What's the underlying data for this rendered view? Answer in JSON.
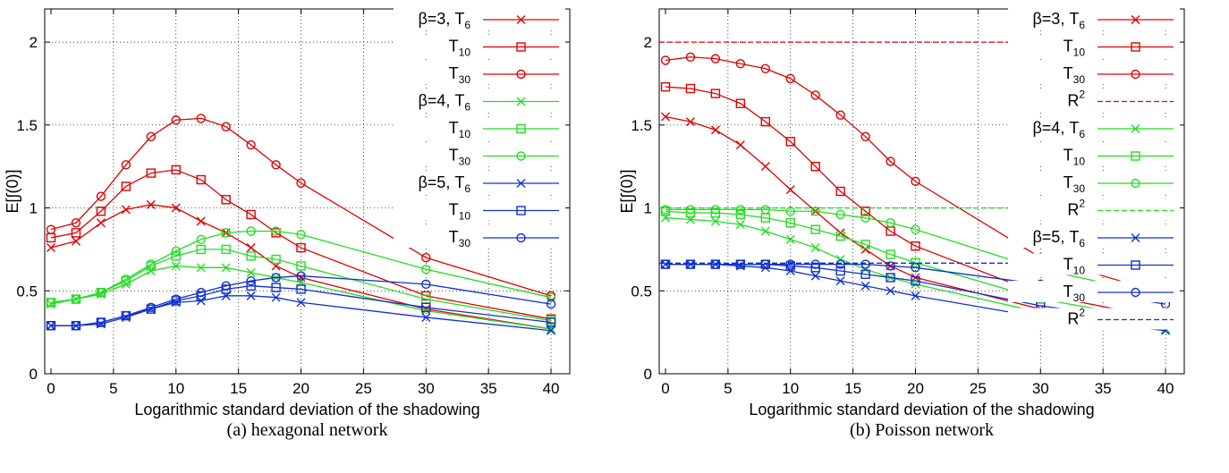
{
  "captions": {
    "a": "(a)  hexagonal network",
    "b": "(b)  Poisson network"
  },
  "chart_data": [
    {
      "type": "line",
      "ylabel": "E[∫(0)]",
      "xlabel": "Logarithmic standard deviation of the shadowing",
      "xlim": [
        -0.5,
        41.5
      ],
      "ylim": [
        0,
        2.2
      ],
      "xticks": [
        0,
        5,
        10,
        15,
        20,
        25,
        30,
        35,
        40
      ],
      "yticks": [
        0,
        0.5,
        1,
        1.5,
        2
      ],
      "ytick_labels": [
        "0",
        "0.5",
        "1",
        "1.5",
        "2"
      ],
      "grid": true,
      "legend": "top-right",
      "series": [
        {
          "name": "β=3, T6",
          "label_main": "β=3, T",
          "label_sub": "6",
          "color": "#e00000",
          "marker": "x",
          "dash": false,
          "x": [
            0,
            2,
            4,
            6,
            8,
            10,
            12,
            14,
            16,
            18,
            20,
            30,
            40
          ],
          "y": [
            0.76,
            0.8,
            0.91,
            0.99,
            1.02,
            1.0,
            0.92,
            0.85,
            0.76,
            0.65,
            0.58,
            0.39,
            0.27
          ]
        },
        {
          "name": "T10",
          "label_main": "T",
          "label_sub": "10",
          "color": "#e00000",
          "marker": "square",
          "dash": false,
          "x": [
            0,
            2,
            4,
            6,
            8,
            10,
            12,
            14,
            16,
            18,
            20,
            30,
            40
          ],
          "y": [
            0.82,
            0.85,
            0.98,
            1.13,
            1.21,
            1.23,
            1.17,
            1.05,
            0.96,
            0.85,
            0.76,
            0.47,
            0.33
          ]
        },
        {
          "name": "T30",
          "label_main": "T",
          "label_sub": "30",
          "color": "#e00000",
          "marker": "circle",
          "dash": false,
          "x": [
            0,
            2,
            4,
            6,
            8,
            10,
            12,
            14,
            16,
            18,
            20,
            30,
            40
          ],
          "y": [
            0.87,
            0.91,
            1.07,
            1.26,
            1.43,
            1.53,
            1.54,
            1.49,
            1.38,
            1.26,
            1.15,
            0.7,
            0.47
          ]
        },
        {
          "name": "β=4, T6",
          "label_main": "β=4, T",
          "label_sub": "6",
          "color": "#22dd22",
          "marker": "x",
          "dash": false,
          "x": [
            0,
            2,
            4,
            6,
            8,
            10,
            12,
            14,
            16,
            18,
            20,
            30,
            40
          ],
          "y": [
            0.42,
            0.45,
            0.48,
            0.54,
            0.62,
            0.65,
            0.64,
            0.64,
            0.61,
            0.58,
            0.55,
            0.38,
            0.27
          ]
        },
        {
          "name": "T10",
          "label_main": "T",
          "label_sub": "10",
          "color": "#22dd22",
          "marker": "square",
          "dash": false,
          "x": [
            0,
            2,
            4,
            6,
            8,
            10,
            12,
            14,
            16,
            18,
            20,
            30,
            40
          ],
          "y": [
            0.43,
            0.45,
            0.49,
            0.56,
            0.65,
            0.71,
            0.75,
            0.75,
            0.71,
            0.69,
            0.65,
            0.45,
            0.32
          ]
        },
        {
          "name": "T30",
          "label_main": "T",
          "label_sub": "30",
          "color": "#22dd22",
          "marker": "circle",
          "dash": false,
          "x": [
            0,
            2,
            4,
            6,
            8,
            10,
            12,
            14,
            16,
            18,
            20,
            30,
            40
          ],
          "y": [
            0.43,
            0.45,
            0.49,
            0.57,
            0.66,
            0.74,
            0.81,
            0.85,
            0.86,
            0.86,
            0.84,
            0.63,
            0.46
          ]
        },
        {
          "name": "β=5, T6",
          "label_main": "β=5, T",
          "label_sub": "6",
          "color": "#1030d0",
          "marker": "x",
          "dash": false,
          "x": [
            0,
            2,
            4,
            6,
            8,
            10,
            12,
            14,
            16,
            18,
            20,
            30,
            40
          ],
          "y": [
            0.29,
            0.29,
            0.3,
            0.34,
            0.39,
            0.43,
            0.44,
            0.47,
            0.47,
            0.46,
            0.43,
            0.34,
            0.26
          ]
        },
        {
          "name": "T10",
          "label_main": "T",
          "label_sub": "10",
          "color": "#1030d0",
          "marker": "square",
          "dash": false,
          "x": [
            0,
            2,
            4,
            6,
            8,
            10,
            12,
            14,
            16,
            18,
            20,
            30,
            40
          ],
          "y": [
            0.29,
            0.29,
            0.31,
            0.35,
            0.39,
            0.44,
            0.47,
            0.51,
            0.53,
            0.52,
            0.51,
            0.4,
            0.31
          ]
        },
        {
          "name": "T30",
          "label_main": "T",
          "label_sub": "30",
          "color": "#1030d0",
          "marker": "circle",
          "dash": false,
          "x": [
            0,
            2,
            4,
            6,
            8,
            10,
            12,
            14,
            16,
            18,
            20,
            30,
            40
          ],
          "y": [
            0.29,
            0.29,
            0.31,
            0.35,
            0.4,
            0.45,
            0.49,
            0.53,
            0.56,
            0.58,
            0.59,
            0.54,
            0.42
          ]
        }
      ]
    },
    {
      "type": "line",
      "ylabel": "E[∫(0)]",
      "xlabel": "Logarithmic standard deviation of the shadowing",
      "xlim": [
        -0.5,
        41.5
      ],
      "ylim": [
        0,
        2.2
      ],
      "xticks": [
        0,
        5,
        10,
        15,
        20,
        25,
        30,
        35,
        40
      ],
      "yticks": [
        0,
        0.5,
        1,
        1.5,
        2
      ],
      "ytick_labels": [
        "0",
        "0.5",
        "1",
        "1.5",
        "2"
      ],
      "grid": true,
      "legend": "top-right",
      "series": [
        {
          "name": "β=3, T6",
          "label_main": "β=3, T",
          "label_sub": "6",
          "color": "#e00000",
          "marker": "x",
          "dash": false,
          "x": [
            0,
            2,
            4,
            6,
            8,
            10,
            12,
            14,
            16,
            18,
            20,
            30,
            40
          ],
          "y": [
            1.55,
            1.52,
            1.47,
            1.38,
            1.25,
            1.11,
            0.98,
            0.85,
            0.75,
            0.65,
            0.58,
            0.39,
            0.27
          ]
        },
        {
          "name": "T10",
          "label_main": "T",
          "label_sub": "10",
          "color": "#e00000",
          "marker": "square",
          "dash": false,
          "x": [
            0,
            2,
            4,
            6,
            8,
            10,
            12,
            14,
            16,
            18,
            20,
            30,
            40
          ],
          "y": [
            1.73,
            1.72,
            1.69,
            1.63,
            1.52,
            1.4,
            1.25,
            1.1,
            0.98,
            0.86,
            0.77,
            0.48,
            0.33
          ]
        },
        {
          "name": "T30",
          "label_main": "T",
          "label_sub": "30",
          "color": "#e00000",
          "marker": "circle",
          "dash": false,
          "x": [
            0,
            2,
            4,
            6,
            8,
            10,
            12,
            14,
            16,
            18,
            20,
            30,
            40
          ],
          "y": [
            1.89,
            1.91,
            1.9,
            1.87,
            1.84,
            1.78,
            1.68,
            1.56,
            1.43,
            1.28,
            1.16,
            0.7,
            0.48
          ]
        },
        {
          "name": "R2",
          "label_main": "R",
          "label_sup": "2",
          "color": "#e00000",
          "marker": "none",
          "dash": true,
          "x": [
            -0.5,
            31.5
          ],
          "y": [
            2.0,
            2.0
          ]
        },
        {
          "name": "β=4, T6",
          "label_main": "β=4, T",
          "label_sub": "6",
          "color": "#22dd22",
          "marker": "x",
          "dash": false,
          "x": [
            0,
            2,
            4,
            6,
            8,
            10,
            12,
            14,
            16,
            18,
            20,
            30,
            40
          ],
          "y": [
            0.94,
            0.93,
            0.92,
            0.9,
            0.86,
            0.81,
            0.76,
            0.69,
            0.63,
            0.58,
            0.54,
            0.37,
            0.27
          ]
        },
        {
          "name": "T10",
          "label_main": "T",
          "label_sub": "10",
          "color": "#22dd22",
          "marker": "square",
          "dash": false,
          "x": [
            0,
            2,
            4,
            6,
            8,
            10,
            12,
            14,
            16,
            18,
            20,
            30,
            40
          ],
          "y": [
            0.98,
            0.97,
            0.97,
            0.96,
            0.94,
            0.91,
            0.87,
            0.83,
            0.78,
            0.72,
            0.67,
            0.45,
            0.32
          ]
        },
        {
          "name": "T30",
          "label_main": "T",
          "label_sub": "30",
          "color": "#22dd22",
          "marker": "circle",
          "dash": false,
          "x": [
            0,
            2,
            4,
            6,
            8,
            10,
            12,
            14,
            16,
            18,
            20,
            30,
            40
          ],
          "y": [
            0.99,
            0.99,
            0.99,
            0.99,
            0.99,
            0.98,
            0.98,
            0.96,
            0.94,
            0.91,
            0.87,
            0.63,
            0.47
          ]
        },
        {
          "name": "R2",
          "label_main": "R",
          "label_sup": "2",
          "color": "#22dd22",
          "marker": "none",
          "dash": true,
          "x": [
            -0.5,
            31.5
          ],
          "y": [
            1.0,
            1.0
          ]
        },
        {
          "name": "β=5, T6",
          "label_main": "β=5, T",
          "label_sub": "6",
          "color": "#1030d0",
          "marker": "x",
          "dash": false,
          "x": [
            0,
            2,
            4,
            6,
            8,
            10,
            12,
            14,
            16,
            18,
            20,
            30,
            40
          ],
          "y": [
            0.66,
            0.66,
            0.66,
            0.65,
            0.64,
            0.62,
            0.59,
            0.56,
            0.53,
            0.5,
            0.47,
            0.34,
            0.26
          ]
        },
        {
          "name": "T10",
          "label_main": "T",
          "label_sub": "10",
          "color": "#1030d0",
          "marker": "square",
          "dash": false,
          "x": [
            0,
            2,
            4,
            6,
            8,
            10,
            12,
            14,
            16,
            18,
            20,
            30,
            40
          ],
          "y": [
            0.66,
            0.66,
            0.66,
            0.66,
            0.66,
            0.65,
            0.64,
            0.62,
            0.6,
            0.58,
            0.56,
            0.41,
            0.31
          ]
        },
        {
          "name": "T30",
          "label_main": "T",
          "label_sub": "30",
          "color": "#1030d0",
          "marker": "circle",
          "dash": false,
          "x": [
            0,
            2,
            4,
            6,
            8,
            10,
            12,
            14,
            16,
            18,
            20,
            30,
            40
          ],
          "y": [
            0.66,
            0.66,
            0.66,
            0.66,
            0.66,
            0.66,
            0.66,
            0.66,
            0.66,
            0.65,
            0.64,
            0.54,
            0.42
          ]
        },
        {
          "name": "R2",
          "label_main": "R",
          "label_sup": "2",
          "color": "#1030d0",
          "marker": "none",
          "dash": true,
          "x": [
            -0.5,
            31.5
          ],
          "y": [
            0.667,
            0.667
          ]
        }
      ]
    }
  ]
}
